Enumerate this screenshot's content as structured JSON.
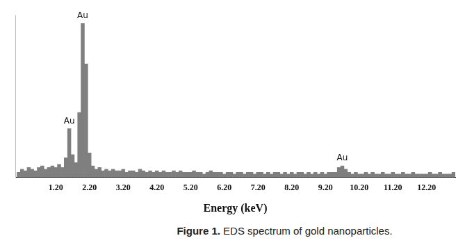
{
  "chart_data": {
    "type": "bar",
    "title": "Figure 1. EDS spectrum of gold nanoparticles.",
    "x_label": "Energy (keV)",
    "x": [
      0.1,
      0.2,
      0.3,
      0.4,
      0.5,
      0.6,
      0.7,
      0.8,
      0.9,
      1.0,
      1.1,
      1.2,
      1.3,
      1.4,
      1.5,
      1.6,
      1.7,
      1.8,
      1.9,
      2.0,
      2.1,
      2.2,
      2.3,
      2.4,
      2.5,
      2.6,
      2.7,
      2.8,
      2.9,
      3.0,
      3.1,
      3.2,
      3.3,
      3.4,
      3.5,
      3.6,
      3.7,
      3.8,
      3.9,
      4.0,
      4.1,
      4.2,
      4.3,
      4.4,
      4.5,
      4.6,
      4.7,
      4.8,
      4.9,
      5.0,
      5.1,
      5.2,
      5.3,
      5.4,
      5.5,
      5.6,
      5.7,
      5.8,
      5.9,
      6.0,
      6.1,
      6.2,
      6.3,
      6.4,
      6.5,
      6.6,
      6.7,
      6.8,
      6.9,
      7.0,
      7.1,
      7.2,
      7.3,
      7.4,
      7.5,
      7.6,
      7.7,
      7.8,
      7.9,
      8.0,
      8.1,
      8.2,
      8.3,
      8.4,
      8.5,
      8.6,
      8.7,
      8.8,
      8.9,
      9.0,
      9.1,
      9.2,
      9.3,
      9.4,
      9.5,
      9.6,
      9.7,
      9.8,
      9.9,
      10.0,
      10.1,
      10.2,
      10.3,
      10.4,
      10.5,
      10.6,
      10.7,
      10.8,
      10.9,
      11.0,
      11.1,
      11.2,
      11.3,
      11.4,
      11.5,
      11.6,
      11.7,
      11.8,
      11.9,
      12.0,
      12.1,
      12.2,
      12.3,
      12.4,
      12.5,
      12.6,
      12.7,
      12.8,
      12.9,
      13.0
    ],
    "values": [
      3,
      5,
      4,
      6,
      5,
      4,
      6,
      7,
      5,
      6,
      7,
      6,
      8,
      6,
      12,
      30,
      14,
      9,
      40,
      95,
      70,
      15,
      7,
      5,
      6,
      4,
      5,
      4,
      5,
      4,
      4,
      5,
      3,
      4,
      4,
      3,
      5,
      4,
      3,
      4,
      3,
      4,
      3,
      4,
      3,
      3,
      4,
      3,
      4,
      3,
      3,
      3,
      4,
      3,
      3,
      2,
      3,
      4,
      3,
      3,
      3,
      2,
      3,
      3,
      2,
      3,
      3,
      2,
      3,
      3,
      2,
      3,
      3,
      2,
      3,
      2,
      3,
      3,
      2,
      3,
      2,
      3,
      2,
      3,
      3,
      2,
      3,
      2,
      3,
      2,
      3,
      2,
      3,
      3,
      3,
      6,
      7,
      5,
      3,
      2,
      3,
      2,
      2,
      3,
      2,
      3,
      2,
      2,
      3,
      2,
      2,
      3,
      2,
      2,
      3,
      2,
      2,
      3,
      2,
      2,
      2,
      2,
      3,
      2,
      2,
      3,
      2,
      2,
      2,
      3
    ],
    "color": "#7f7f7f",
    "xlim": [
      0,
      13.05
    ],
    "xticks": [
      {
        "value": 1.2,
        "label": "1.20"
      },
      {
        "value": 2.2,
        "label": "2.20"
      },
      {
        "value": 3.2,
        "label": "3.20"
      },
      {
        "value": 4.2,
        "label": "4.20"
      },
      {
        "value": 5.2,
        "label": "5.20"
      },
      {
        "value": 6.2,
        "label": "6.20"
      },
      {
        "value": 7.2,
        "label": "7.20"
      },
      {
        "value": 8.2,
        "label": "8.20"
      },
      {
        "value": 9.2,
        "label": "9.20"
      },
      {
        "value": 10.2,
        "label": "10.20"
      },
      {
        "value": 11.2,
        "label": "11.20"
      },
      {
        "value": 12.2,
        "label": "12.20"
      }
    ],
    "ylim": [
      0,
      100
    ],
    "tick_labels": "x",
    "grid": false,
    "annotations": [
      {
        "text": "Au",
        "x": 1.6
      },
      {
        "text": "Au",
        "x": 2.0
      },
      {
        "text": "Au",
        "x": 9.7
      }
    ]
  }
}
